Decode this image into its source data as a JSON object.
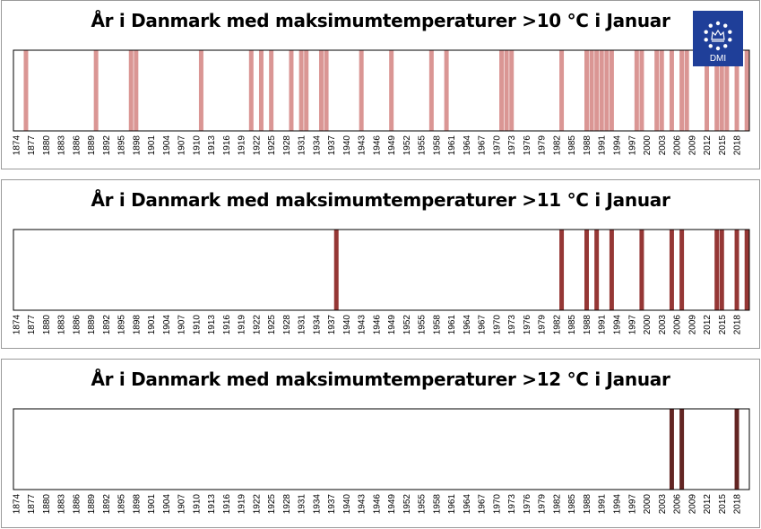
{
  "logo": {
    "text": "DMI",
    "icon": "dmi-crown-logo",
    "color": "#1f3f99"
  },
  "chart_data": [
    {
      "type": "bar",
      "title": "År i Danmark med maksimumtemperaturer >10 °C i Januar",
      "xlabel": "",
      "ylabel": "",
      "x_range": [
        1874,
        2020
      ],
      "tick_labels": [
        1874,
        1877,
        1880,
        1883,
        1886,
        1889,
        1892,
        1895,
        1898,
        1901,
        1904,
        1907,
        1910,
        1913,
        1916,
        1919,
        1922,
        1925,
        1928,
        1931,
        1934,
        1937,
        1940,
        1943,
        1946,
        1949,
        1952,
        1955,
        1958,
        1961,
        1964,
        1967,
        1970,
        1973,
        1976,
        1979,
        1982,
        1985,
        1988,
        1991,
        1994,
        1997,
        2000,
        2003,
        2006,
        2009,
        2012,
        2015,
        2018
      ],
      "color": "#da9694",
      "years": [
        1876,
        1890,
        1897,
        1898,
        1911,
        1921,
        1923,
        1925,
        1929,
        1931,
        1932,
        1935,
        1936,
        1943,
        1949,
        1957,
        1960,
        1971,
        1972,
        1973,
        1983,
        1988,
        1989,
        1990,
        1991,
        1992,
        1993,
        1998,
        1999,
        2002,
        2003,
        2005,
        2007,
        2008,
        2012,
        2014,
        2015,
        2016,
        2018,
        2020
      ]
    },
    {
      "type": "bar",
      "title": "År i Danmark med maksimumtemperaturer >11 °C i Januar",
      "xlabel": "",
      "ylabel": "",
      "x_range": [
        1874,
        2020
      ],
      "tick_labels": [
        1874,
        1877,
        1880,
        1883,
        1886,
        1889,
        1892,
        1895,
        1898,
        1901,
        1904,
        1907,
        1910,
        1913,
        1916,
        1919,
        1922,
        1925,
        1928,
        1931,
        1934,
        1937,
        1940,
        1943,
        1946,
        1949,
        1952,
        1955,
        1958,
        1961,
        1964,
        1967,
        1970,
        1973,
        1976,
        1979,
        1982,
        1985,
        1988,
        1991,
        1994,
        1997,
        2000,
        2003,
        2006,
        2009,
        2012,
        2015,
        2018
      ],
      "color": "#953735",
      "years": [
        1938,
        1983,
        1988,
        1990,
        1993,
        1999,
        2005,
        2007,
        2014,
        2015,
        2018,
        2020
      ]
    },
    {
      "type": "bar",
      "title": "År i Danmark med maksimumtemperaturer >12 °C i Januar",
      "xlabel": "",
      "ylabel": "",
      "x_range": [
        1874,
        2020
      ],
      "tick_labels": [
        1874,
        1877,
        1880,
        1883,
        1886,
        1889,
        1892,
        1895,
        1898,
        1901,
        1904,
        1907,
        1910,
        1913,
        1916,
        1919,
        1922,
        1925,
        1928,
        1931,
        1934,
        1937,
        1940,
        1943,
        1946,
        1949,
        1952,
        1955,
        1958,
        1961,
        1964,
        1967,
        1970,
        1973,
        1976,
        1979,
        1982,
        1985,
        1988,
        1991,
        1994,
        1997,
        2000,
        2003,
        2006,
        2009,
        2012,
        2015,
        2018
      ],
      "color": "#632523",
      "years": [
        2005,
        2007,
        2018
      ]
    }
  ]
}
